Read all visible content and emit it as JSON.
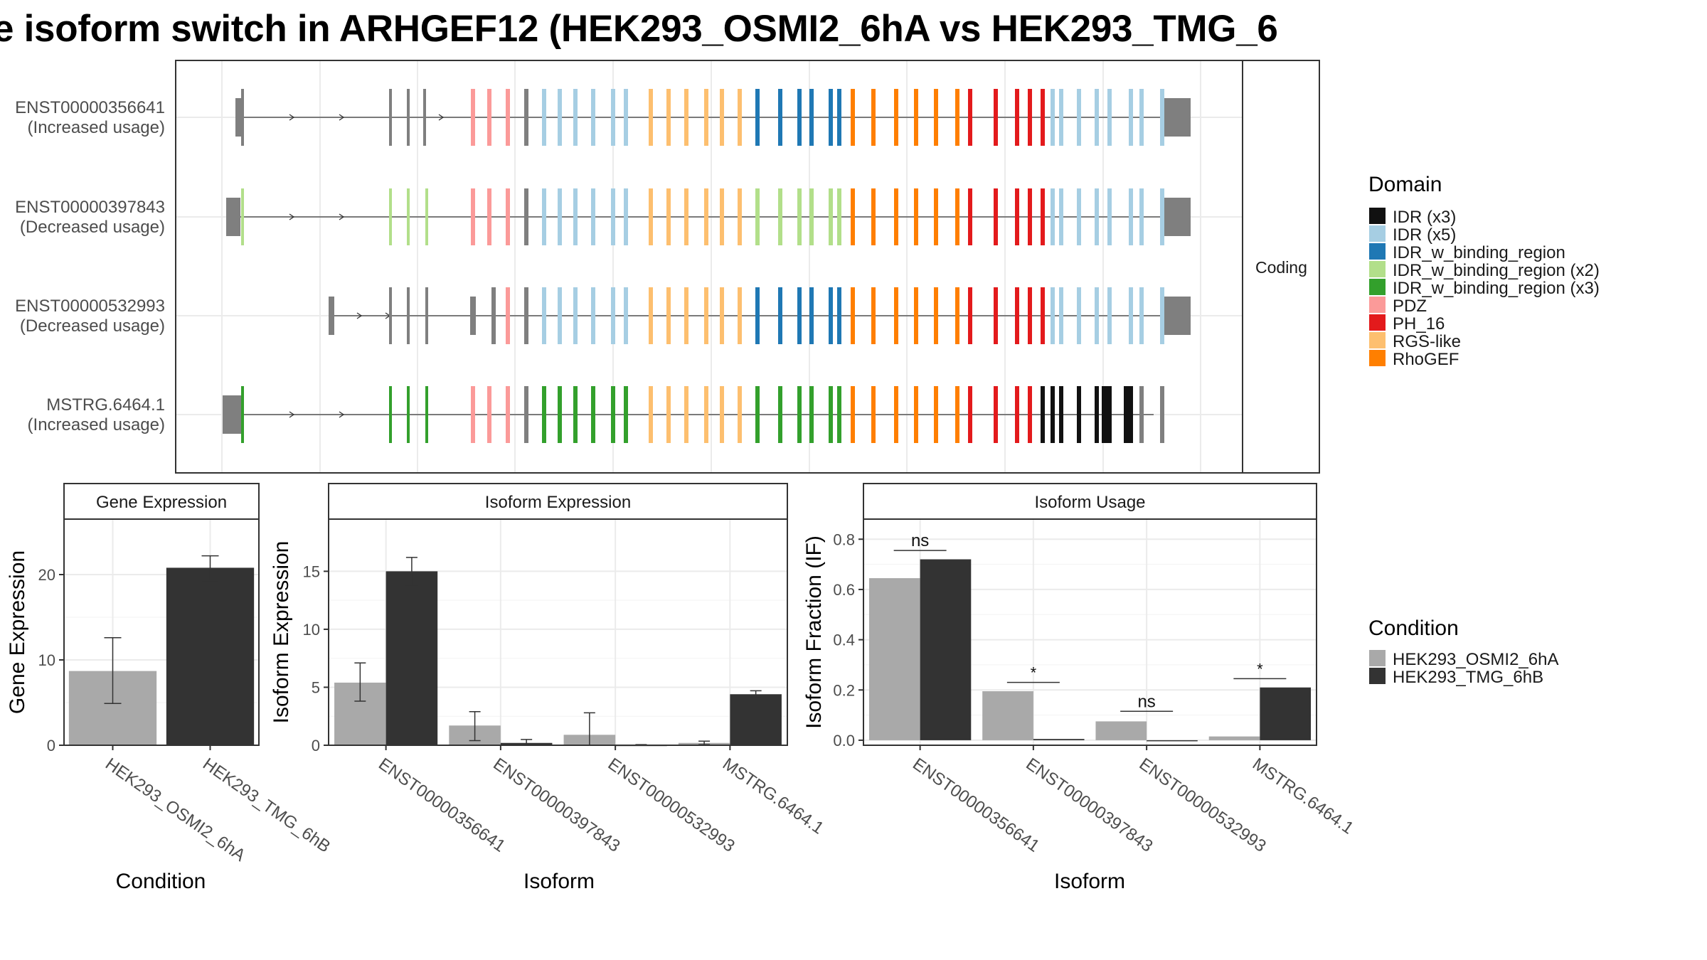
{
  "title": "e isoform switch in ARHGEF12 (HEK293_OSMI2_6hA vs HEK293_TMG_6",
  "structure_panel": {
    "strip": "Coding",
    "isoforms": [
      {
        "id": "ENST00000356641",
        "usage": "(Increased usage)"
      },
      {
        "id": "ENST00000397843",
        "usage": "(Decreased usage)"
      },
      {
        "id": "ENST00000532993",
        "usage": "(Decreased usage)"
      },
      {
        "id": "MSTRG.6464.1",
        "usage": "(Increased usage)"
      }
    ]
  },
  "legend_domain": {
    "title": "Domain",
    "items": [
      {
        "label": "IDR (x3)",
        "color": "#111111"
      },
      {
        "label": "IDR (x5)",
        "color": "#a6cee3"
      },
      {
        "label": "IDR_w_binding_region",
        "color": "#1f78b4"
      },
      {
        "label": "IDR_w_binding_region (x2)",
        "color": "#b2df8a"
      },
      {
        "label": "IDR_w_binding_region (x3)",
        "color": "#33a02c"
      },
      {
        "label": "PDZ",
        "color": "#fb9a99"
      },
      {
        "label": "PH_16",
        "color": "#e31a1c"
      },
      {
        "label": "RGS-like",
        "color": "#fdbf6f"
      },
      {
        "label": "RhoGEF",
        "color": "#ff7f00"
      }
    ]
  },
  "legend_condition": {
    "title": "Condition",
    "items": [
      {
        "label": "HEK293_OSMI2_6hA",
        "color": "#a9a9a9"
      },
      {
        "label": "HEK293_TMG_6hB",
        "color": "#333333"
      }
    ]
  },
  "chart_data": [
    {
      "type": "bar",
      "title": "Gene Expression",
      "xlabel": "Condition",
      "ylabel": "Gene Expression",
      "categories": [
        "HEK293_OSMI2_6hA",
        "HEK293_TMG_6hB"
      ],
      "values": [
        8.7,
        20.8
      ],
      "error_low": [
        4.9,
        19.3
      ],
      "error_high": [
        12.6,
        22.2
      ],
      "colors": [
        "#a9a9a9",
        "#333333"
      ],
      "ylim": [
        0,
        26.5
      ],
      "yticks": [
        0,
        10,
        20
      ],
      "grid": true
    },
    {
      "type": "bar",
      "title": "Isoform Expression",
      "xlabel": "Isoform",
      "ylabel": "Isoform Expression",
      "categories": [
        "ENST00000356641",
        "ENST00000397843",
        "ENST00000532993",
        "MSTRG.6464.1"
      ],
      "series": [
        {
          "name": "HEK293_OSMI2_6hA",
          "color": "#a9a9a9",
          "values": [
            5.4,
            1.7,
            0.9,
            0.2
          ],
          "error_low": [
            3.8,
            0.4,
            0.0,
            0.05
          ],
          "error_high": [
            7.1,
            2.9,
            2.8,
            0.35
          ]
        },
        {
          "name": "HEK293_TMG_6hB",
          "color": "#333333",
          "values": [
            15.0,
            0.2,
            0.02,
            4.4
          ],
          "error_low": [
            13.8,
            0.0,
            0.0,
            4.1
          ],
          "error_high": [
            16.2,
            0.5,
            0.05,
            4.7
          ]
        }
      ],
      "ylim": [
        0,
        19.5
      ],
      "yticks": [
        0,
        5,
        10,
        15
      ],
      "grid": true
    },
    {
      "type": "bar",
      "title": "Isoform Usage",
      "xlabel": "Isoform",
      "ylabel": "Isoform Fraction (IF)",
      "categories": [
        "ENST00000356641",
        "ENST00000397843",
        "ENST00000532993",
        "MSTRG.6464.1"
      ],
      "series": [
        {
          "name": "HEK293_OSMI2_6hA",
          "color": "#a9a9a9",
          "values": [
            0.645,
            0.195,
            0.075,
            0.015
          ]
        },
        {
          "name": "HEK293_TMG_6hB",
          "color": "#333333",
          "values": [
            0.72,
            0.005,
            0.0,
            0.21
          ]
        }
      ],
      "significance": [
        "ns",
        "*",
        "ns",
        "*"
      ],
      "significance_y": [
        0.755,
        0.23,
        0.115,
        0.245
      ],
      "ylim": [
        -0.02,
        0.88
      ],
      "yticks": [
        0.0,
        0.2,
        0.4,
        0.6,
        0.8
      ],
      "ytick_labels": [
        "0.0",
        "0.2",
        "0.4",
        "0.6",
        "0.8"
      ],
      "grid": true
    }
  ]
}
